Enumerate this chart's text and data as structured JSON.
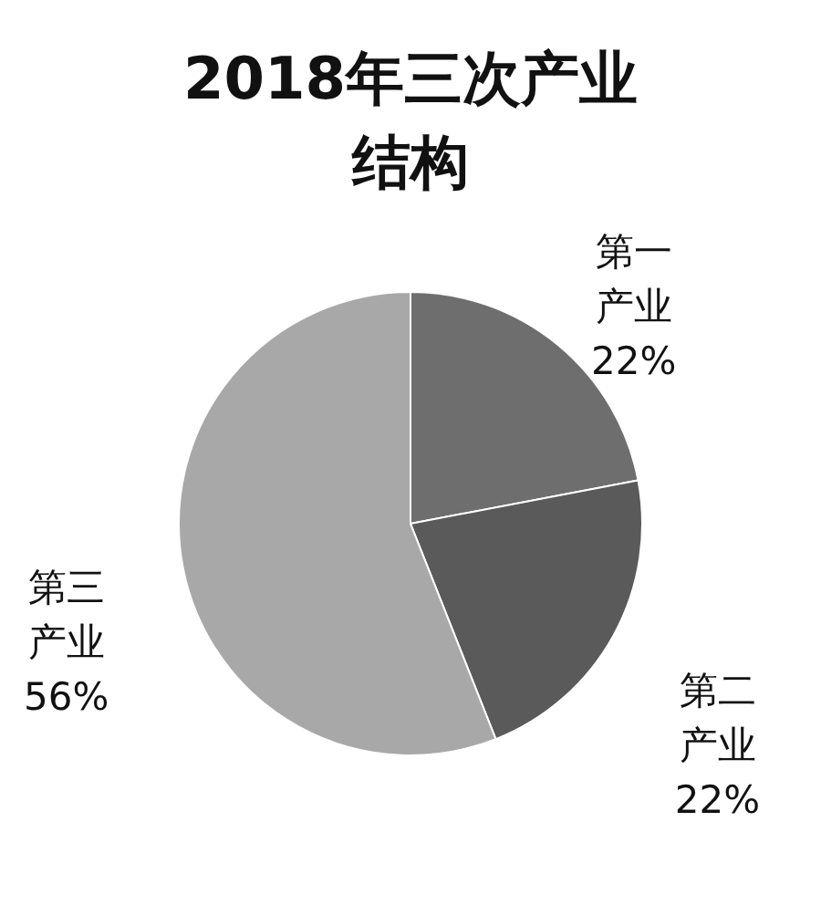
{
  "chart_data": {
    "type": "pie",
    "title": "2018年三次产业结构",
    "categories": [
      "第一产业",
      "第二产业",
      "第三产业"
    ],
    "values": [
      22,
      22,
      56
    ],
    "value_labels": [
      "22%",
      "22%",
      "56%"
    ],
    "colors": [
      "#6e6e6e",
      "#5a5a5a",
      "#a8a8a8"
    ],
    "legend": false
  }
}
